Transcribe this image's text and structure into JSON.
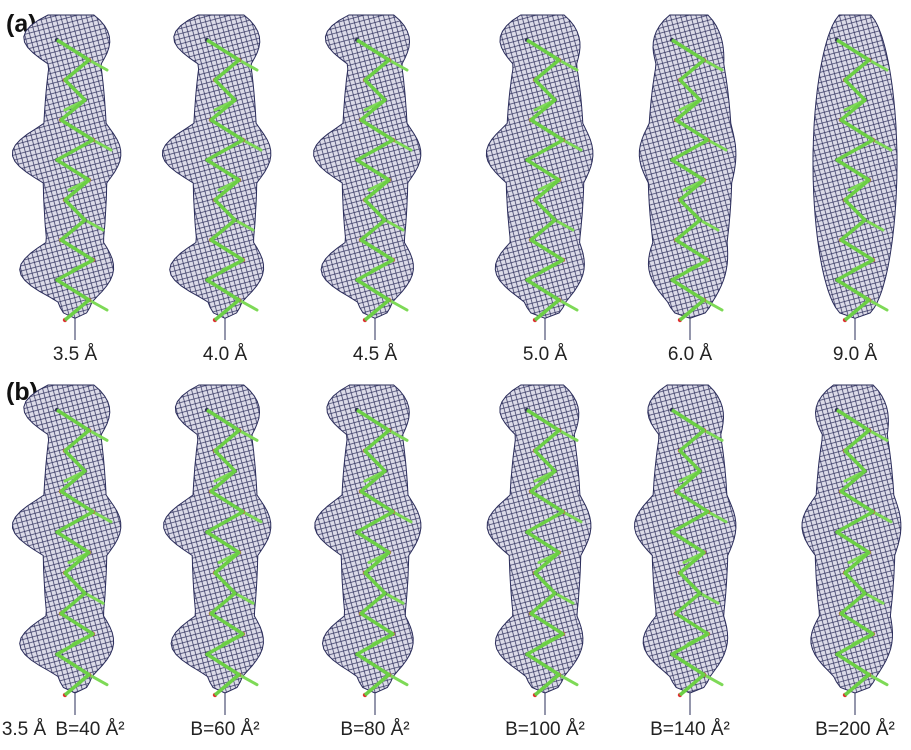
{
  "panels": [
    {
      "label": "(a)",
      "captions": [
        "3.5 Å",
        "4.0 Å",
        "4.5 Å",
        "5.0 Å",
        "6.0 Å",
        "9.0 Å"
      ]
    },
    {
      "label": "(b)",
      "captions": [
        "3.5 Å",
        "B=40 Å²",
        "B=60 Å²",
        "B=80 Å²",
        "B=100 Å²",
        "B=140 Å²",
        "B=200 Å²"
      ]
    }
  ]
}
